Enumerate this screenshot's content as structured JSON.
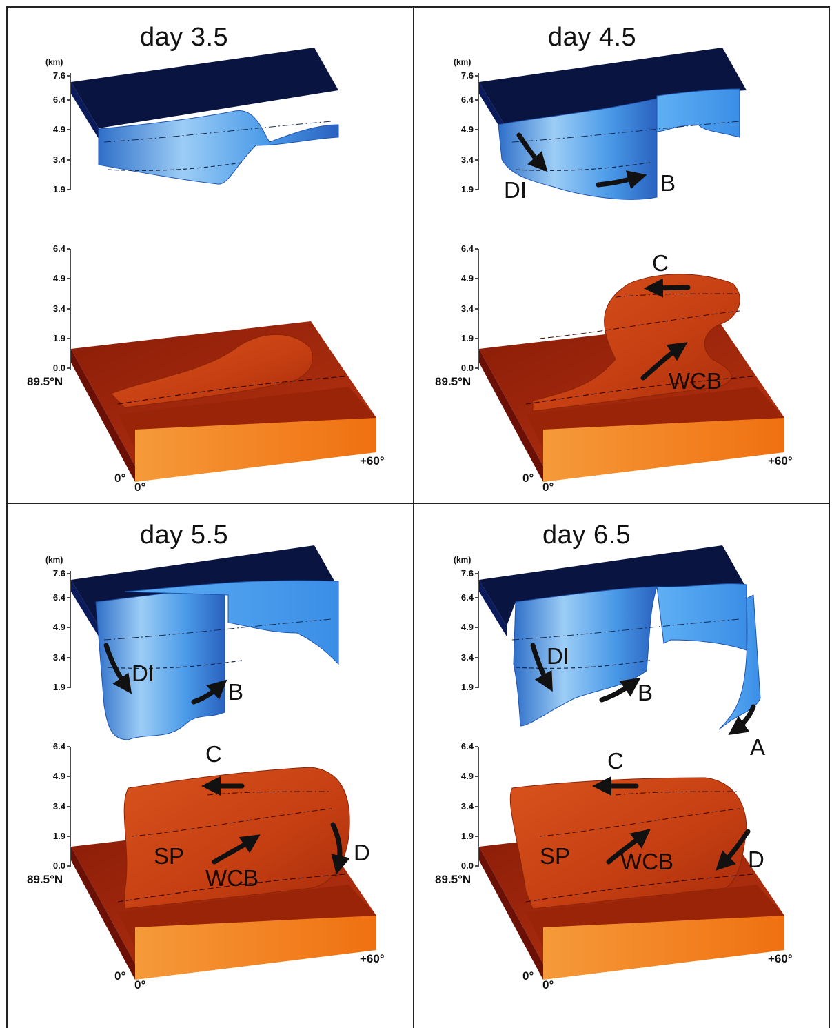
{
  "panels": [
    {
      "title": "day 3.5",
      "upper_axis": {
        "unit": "(km)",
        "ticks": [
          "7.6",
          "6.4",
          "4.9",
          "3.4",
          "1.9"
        ]
      },
      "lower_axis": {
        "ticks": [
          "6.4",
          "4.9",
          "3.4",
          "1.9",
          "0.0"
        ]
      },
      "corners": {
        "lat": "89.5°N",
        "lon_left": "0°",
        "lon_zero": "0°",
        "lon_right": "+60°"
      },
      "annotations": {}
    },
    {
      "title": "day 4.5",
      "upper_axis": {
        "unit": "(km)",
        "ticks": [
          "7.6",
          "6.4",
          "4.9",
          "3.4",
          "1.9"
        ]
      },
      "lower_axis": {
        "ticks": [
          "6.4",
          "4.9",
          "3.4",
          "1.9",
          "0.0"
        ]
      },
      "corners": {
        "lat": "89.5°N",
        "lon_left": "0°",
        "lon_zero": "0°",
        "lon_right": "+60°"
      },
      "annotations": {
        "DI": "DI",
        "B": "B",
        "C": "C",
        "WCB": "WCB"
      }
    },
    {
      "title": "day 5.5",
      "upper_axis": {
        "unit": "(km)",
        "ticks": [
          "7.6",
          "6.4",
          "4.9",
          "3.4",
          "1.9"
        ]
      },
      "lower_axis": {
        "ticks": [
          "6.4",
          "4.9",
          "3.4",
          "1.9",
          "0.0"
        ]
      },
      "corners": {
        "lat": "89.5°N",
        "lon_left": "0°",
        "lon_zero": "0°",
        "lon_right": "+60°"
      },
      "annotations": {
        "DI": "DI",
        "B": "B",
        "C": "C",
        "SP": "SP",
        "WCB": "WCB",
        "D": "D"
      }
    },
    {
      "title": "day 6.5",
      "upper_axis": {
        "unit": "(km)",
        "ticks": [
          "7.6",
          "6.4",
          "4.9",
          "3.4",
          "1.9"
        ]
      },
      "lower_axis": {
        "ticks": [
          "6.4",
          "4.9",
          "3.4",
          "1.9",
          "0.0"
        ]
      },
      "corners": {
        "lat": "89.5°N",
        "lon_left": "0°",
        "lon_zero": "0°",
        "lon_right": "+60°"
      },
      "annotations": {
        "DI": "DI",
        "B": "B",
        "A": "A",
        "C": "C",
        "SP": "SP",
        "WCB": "WCB",
        "D": "D"
      }
    }
  ],
  "colors": {
    "tropo_top": "#0a1440",
    "tropo_face": "#4aa4ee",
    "tropo_light": "#b8dcfa",
    "surface_dark": "#7a1406",
    "surface_mid": "#c23a10",
    "surface_front": "#f07a1a",
    "arrow": "#111111"
  }
}
